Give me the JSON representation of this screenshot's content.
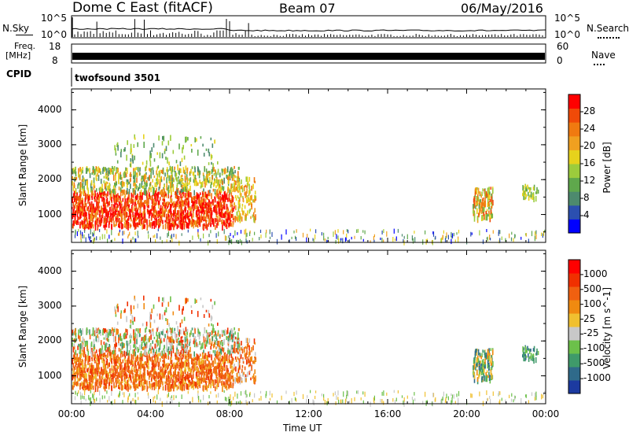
{
  "header": {
    "station": "Dome C East (fitACF)",
    "beam": "Beam 07",
    "date": "06/May/2016"
  },
  "top_panels": {
    "nsky_label": "N.Sky",
    "nsky_top": "10^5",
    "nsky_bottom": "10^0",
    "nsearch_label": "N.Search",
    "nsearch_top": "10^5",
    "nsearch_bottom": "10^0",
    "freq_label": "Freq.",
    "freq_unit": "[MHz]",
    "freq_top": "18",
    "freq_bottom": "8",
    "nave_label": "Nave",
    "nave_top": "60",
    "nave_bottom": "0",
    "cpid_label": "CPID",
    "cpid_value": "twofsound 3501"
  },
  "chart_data": [
    {
      "type": "heatmap",
      "title": "",
      "ylabel": "Slant Range [km]",
      "ylim": [
        200,
        4600
      ],
      "yticks": [
        "4000",
        "3000",
        "2000",
        "1000"
      ],
      "xlim": [
        "00:00",
        "24:00"
      ],
      "colorbar_label": "Power [dB]",
      "colorbar_ticks": [
        "28",
        "24",
        "20",
        "16",
        "12",
        "8",
        "4"
      ],
      "colors": [
        "#0000ff",
        "#2b4fb0",
        "#4d8a6e",
        "#5fa84c",
        "#9ccc3c",
        "#e6d21c",
        "#f0a020",
        "#f07a10",
        "#f04a08",
        "#ff0000"
      ]
    },
    {
      "type": "heatmap",
      "title": "",
      "xlabel": "Time UT",
      "ylabel": "Slant Range [km]",
      "ylim": [
        200,
        4600
      ],
      "yticks": [
        "4000",
        "3000",
        "2000",
        "1000"
      ],
      "xticks": [
        "00:00",
        "04:00",
        "08:00",
        "12:00",
        "16:00",
        "20:00",
        "00:00"
      ],
      "colorbar_label": "Velocity  [m s^-1]",
      "colorbar_ticks": [
        "1000",
        "500",
        "100",
        "25",
        "-25",
        "-100",
        "-500",
        "-1000"
      ],
      "colors": [
        "#1c3aa0",
        "#2f6a8a",
        "#3f9a6a",
        "#6cc04a",
        "#c8c8c8",
        "#f0c030",
        "#f08a10",
        "#f06010",
        "#f03000",
        "#ff0000"
      ]
    }
  ]
}
